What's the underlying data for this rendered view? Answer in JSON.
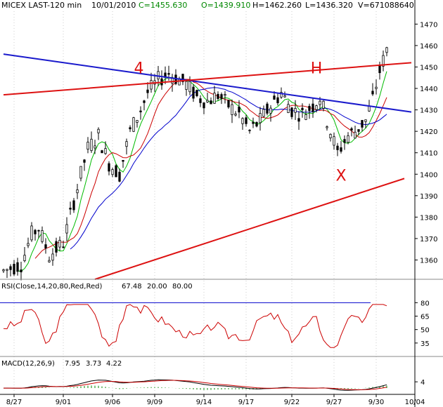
{
  "header": {
    "title": "MICEX LAST-120 min",
    "date": "10/01/2010",
    "close": "C=1455.630",
    "open": "O=1439.910",
    "high": "H=1462.260",
    "low": "L=1436.320",
    "volume": "V=671088640"
  },
  "colors": {
    "candle": "#000000",
    "ma_fast": "#00bb00",
    "ma_mid": "#cc0000",
    "ma_slow": "#0000cc",
    "trend_blue": "#1a1acc",
    "trend_red": "#dd1111",
    "annotation": "#dd1111",
    "rsi": "#cc0000",
    "macd": "#000000",
    "macd_signal": "#cc0000",
    "macd_hist": "#008800"
  },
  "chart_data": {
    "type": "candlestick",
    "price_axis": {
      "ylim": [
        1351,
        1476
      ],
      "ticks": [
        1360,
        1370,
        1380,
        1390,
        1400,
        1410,
        1420,
        1430,
        1440,
        1450,
        1460,
        1470
      ]
    },
    "x_axis": {
      "range": [
        0,
        116
      ],
      "ticks": [
        {
          "x": 3,
          "label": "8/27"
        },
        {
          "x": 17,
          "label": "9/01"
        },
        {
          "x": 31,
          "label": "9/06"
        },
        {
          "x": 43,
          "label": "9/09"
        },
        {
          "x": 57,
          "label": "9/14"
        },
        {
          "x": 69,
          "label": "9/17"
        },
        {
          "x": 82,
          "label": "9/22"
        },
        {
          "x": 94,
          "label": "9/27"
        },
        {
          "x": 106,
          "label": "9/30"
        },
        {
          "x": 117,
          "label": "10/04"
        }
      ]
    },
    "trendlines": [
      {
        "name": "blue",
        "x1": 0,
        "y1": 1456,
        "x2": 116,
        "y2": 1429
      },
      {
        "name": "red-top",
        "x1": 0,
        "y1": 1437,
        "x2": 116,
        "y2": 1452
      },
      {
        "name": "red-bottom",
        "x1": 26,
        "y1": 1351,
        "x2": 114,
        "y2": 1398
      }
    ],
    "annotations": [
      {
        "text": "4",
        "x": 38.5,
        "y": 1447
      },
      {
        "text": "H",
        "x": 89,
        "y": 1447
      },
      {
        "text": "X",
        "x": 96,
        "y": 1397
      }
    ],
    "rsi": {
      "label": "RSI(Close,14,20,80,Red,Red)",
      "value": "67.48",
      "lower": "20.00",
      "upper": "80.00",
      "ylim": [
        20,
        92
      ],
      "ticks": [
        80,
        65,
        50,
        35
      ]
    },
    "macd": {
      "label": "MACD(12,26,9)",
      "macd_value": "7.95",
      "signal_value": "3.73",
      "hist_value": "4.22",
      "ylim": [
        -4,
        13
      ],
      "ticks": [
        4
      ]
    }
  }
}
